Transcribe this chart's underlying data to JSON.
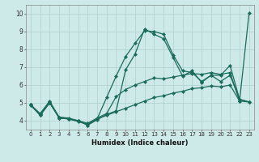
{
  "xlabel": "Humidex (Indice chaleur)",
  "xlim": [
    -0.5,
    23.5
  ],
  "ylim": [
    3.5,
    10.5
  ],
  "xticks": [
    0,
    1,
    2,
    3,
    4,
    5,
    6,
    7,
    8,
    9,
    10,
    11,
    12,
    13,
    14,
    15,
    16,
    17,
    18,
    19,
    20,
    21,
    22,
    23
  ],
  "yticks": [
    4,
    5,
    6,
    7,
    8,
    9,
    10
  ],
  "bg_color": "#ceeae8",
  "grid_color": "#aed0ce",
  "line_color": "#1a6b5a",
  "line1_y": [
    4.9,
    4.3,
    5.0,
    4.2,
    4.1,
    4.0,
    3.75,
    4.1,
    5.3,
    6.5,
    7.6,
    8.35,
    9.05,
    9.0,
    8.85,
    7.7,
    6.8,
    6.7,
    6.2,
    6.55,
    6.55,
    7.1,
    5.2,
    5.05
  ],
  "line2_y": [
    4.9,
    4.3,
    5.0,
    4.15,
    4.1,
    4.0,
    3.75,
    4.05,
    4.35,
    4.55,
    6.85,
    7.75,
    9.15,
    8.85,
    8.6,
    7.55,
    6.5,
    6.8,
    6.15,
    6.55,
    6.2,
    6.55,
    5.2,
    5.05
  ],
  "line3_y": [
    4.9,
    4.4,
    5.1,
    4.2,
    4.15,
    4.0,
    3.85,
    4.15,
    4.4,
    5.35,
    5.75,
    6.0,
    6.2,
    6.4,
    6.35,
    6.45,
    6.55,
    6.65,
    6.6,
    6.7,
    6.6,
    6.7,
    5.1,
    5.05
  ],
  "line4_y": [
    4.85,
    4.35,
    5.05,
    4.15,
    4.1,
    3.95,
    3.8,
    4.1,
    4.3,
    4.5,
    4.7,
    4.9,
    5.1,
    5.3,
    5.4,
    5.55,
    5.65,
    5.8,
    5.85,
    5.95,
    5.9,
    6.0,
    5.1,
    10.05
  ],
  "linewidth": 0.9,
  "marker_size": 2.2
}
